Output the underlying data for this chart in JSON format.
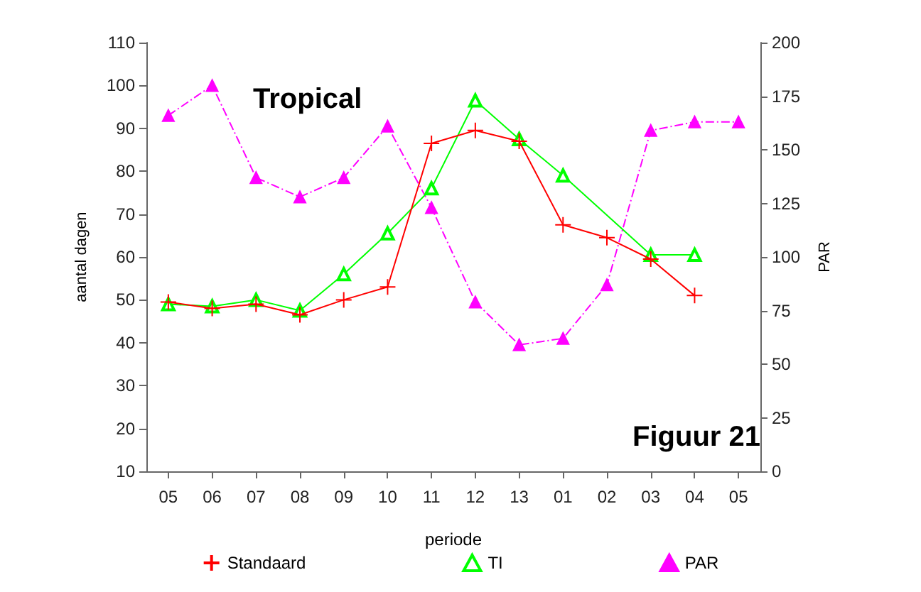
{
  "chart_data": {
    "type": "line",
    "categories": [
      "05",
      "06",
      "07",
      "08",
      "09",
      "10",
      "11",
      "12",
      "13",
      "01",
      "02",
      "03",
      "04",
      "05"
    ],
    "series": [
      {
        "name": "Standaard",
        "color": "#ff0000",
        "marker": "cross",
        "line_style": "solid",
        "values": [
          49.5,
          48,
          49,
          46.5,
          50,
          53,
          86.5,
          89.5,
          87,
          67.5,
          64.5,
          59.5,
          51,
          null
        ]
      },
      {
        "name": "TI",
        "color": "#00ff00",
        "marker": "triangle",
        "line_style": "solid",
        "values": [
          49,
          48.5,
          50,
          47.5,
          56,
          65.5,
          76,
          96.5,
          87.5,
          79,
          null,
          60.5,
          60.5,
          null
        ]
      },
      {
        "name": "PAR",
        "color": "#ff00ff",
        "marker": "triangle",
        "line_style": "dashed",
        "axis": "y2",
        "values": [
          166,
          180,
          137,
          128,
          137,
          161,
          123,
          79,
          59,
          62,
          87,
          159,
          163,
          163
        ]
      }
    ],
    "xlabel": "periode",
    "ylabel": "aantal dagen",
    "y2label": "PAR",
    "ylim": [
      10,
      110
    ],
    "yticks": [
      10,
      20,
      30,
      40,
      50,
      60,
      70,
      80,
      90,
      100,
      110
    ],
    "y2lim": [
      0,
      200
    ],
    "y2ticks": [
      0,
      25,
      50,
      75,
      100,
      125,
      150,
      175,
      200
    ],
    "annotations": [
      "Tropical",
      "Figuur 21"
    ],
    "grid": false,
    "legend": "bottom"
  }
}
